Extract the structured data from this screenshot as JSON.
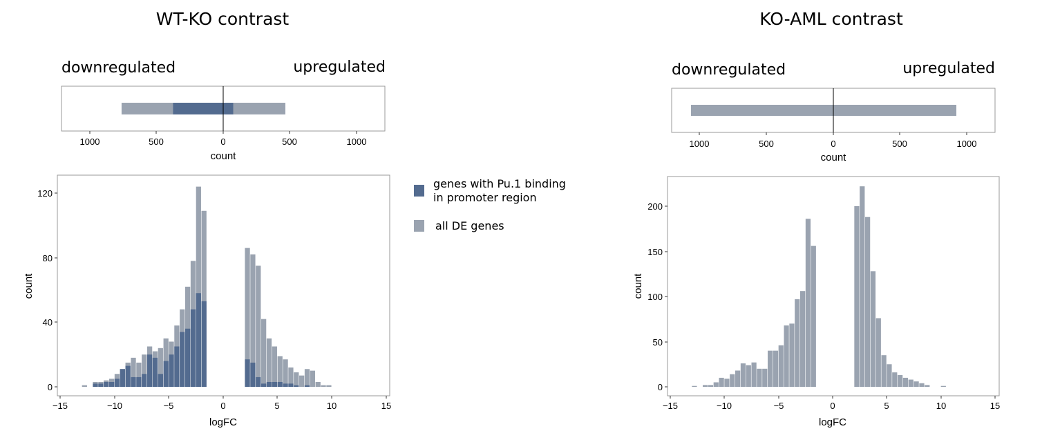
{
  "colors": {
    "all_de": "#9aa3b0",
    "pu1": "#536b8f",
    "frame": "#9a9a9a",
    "axis": "#333333"
  },
  "legend": {
    "items": [
      {
        "label_line1": "genes with Pu.1 binding",
        "label_line2": "in promoter region",
        "color": "#536b8f"
      },
      {
        "label_line1": "all DE genes",
        "label_line2": "",
        "color": "#9aa3b0"
      }
    ]
  },
  "panels": [
    {
      "title": "WT-KO contrast",
      "down_label": "downregulated",
      "up_label": "upregulated",
      "bar_chart": {
        "xlabel": "count",
        "xticks": [
          1000,
          500,
          0,
          500,
          1000
        ],
        "xlim": [
          -1200,
          1200
        ],
        "down_all": 760,
        "up_all": 465,
        "down_pu1": 375,
        "up_pu1": 75
      },
      "histogram": {
        "xlabel": "logFC",
        "ylabel": "count",
        "xlim": [
          -15,
          15
        ],
        "ylim": [
          -4,
          128
        ],
        "xticks": [
          -15,
          -10,
          -5,
          0,
          5,
          10,
          15
        ],
        "yticks": [
          0,
          40,
          80,
          120
        ],
        "xtick_labels": [
          "−15",
          "−10",
          "−5",
          "0",
          "5",
          "10",
          "15"
        ],
        "ytick_labels": [
          "0",
          "40",
          "80",
          "120"
        ]
      }
    },
    {
      "title": "KO-AML contrast",
      "down_label": "downregulated",
      "up_label": "upregulated",
      "bar_chart": {
        "xlabel": "count",
        "xticks": [
          1000,
          500,
          0,
          500,
          1000
        ],
        "xlim": [
          -1200,
          1200
        ],
        "down_all": 1065,
        "up_all": 920,
        "down_pu1": 0,
        "up_pu1": 0
      },
      "histogram": {
        "xlabel": "logFC",
        "ylabel": "count",
        "xlim": [
          -15,
          15
        ],
        "ylim": [
          -8,
          232
        ],
        "xticks": [
          -15,
          -10,
          -5,
          0,
          5,
          10,
          15
        ],
        "yticks": [
          0,
          50,
          100,
          150,
          200
        ],
        "xtick_labels": [
          "−15",
          "−10",
          "−5",
          "0",
          "5",
          "10",
          "15"
        ],
        "ytick_labels": [
          "0",
          "50",
          "100",
          "150",
          "200"
        ]
      }
    }
  ],
  "chart_data": [
    {
      "type": "bar",
      "title": "WT-KO contrast",
      "xlabel": "count",
      "categories": [
        "downregulated",
        "upregulated"
      ],
      "series": [
        {
          "name": "all DE genes",
          "values": [
            760,
            465
          ]
        },
        {
          "name": "genes with Pu.1 binding in promoter region",
          "values": [
            375,
            75
          ]
        }
      ],
      "xlim": [
        -1200,
        1200
      ]
    },
    {
      "type": "bar",
      "title": "WT-KO contrast",
      "xlabel": "logFC",
      "ylabel": "count",
      "bin_width": 0.5,
      "x": [
        -13,
        -12,
        -11.5,
        -11,
        -10.5,
        -10,
        -9.5,
        -9,
        -8.5,
        -8,
        -7.5,
        -7,
        -6.5,
        -6,
        -5.5,
        -5,
        -4.5,
        -4,
        -3.5,
        -3,
        -2.5,
        -2,
        2,
        2.5,
        3,
        3.5,
        4,
        4.5,
        5,
        5.5,
        6,
        6.5,
        7,
        7.5,
        8,
        8.5,
        9,
        9.5
      ],
      "series": [
        {
          "name": "all DE genes",
          "values": [
            1,
            3,
            3,
            4,
            5,
            8,
            11,
            15,
            18,
            15,
            20,
            25,
            22,
            24,
            30,
            28,
            38,
            48,
            62,
            78,
            124,
            109,
            86,
            82,
            75,
            42,
            30,
            25,
            19,
            17,
            12,
            9,
            7,
            11,
            10,
            3,
            1,
            1
          ]
        },
        {
          "name": "genes with Pu.1 binding in promoter region",
          "values": [
            0,
            2,
            2,
            3,
            3,
            5,
            11,
            13,
            6,
            6,
            8,
            20,
            18,
            8,
            16,
            20,
            25,
            34,
            36,
            48,
            58,
            53,
            17,
            15,
            6,
            2,
            3,
            3,
            3,
            2,
            2,
            1,
            0,
            1,
            0,
            0,
            0,
            0
          ]
        }
      ],
      "xlim": [
        -15,
        15
      ],
      "ylim": [
        0,
        128
      ]
    },
    {
      "type": "bar",
      "title": "KO-AML contrast",
      "xlabel": "count",
      "categories": [
        "downregulated",
        "upregulated"
      ],
      "series": [
        {
          "name": "all DE genes",
          "values": [
            1065,
            920
          ]
        }
      ],
      "xlim": [
        -1200,
        1200
      ]
    },
    {
      "type": "bar",
      "title": "KO-AML contrast",
      "xlabel": "logFC",
      "ylabel": "count",
      "bin_width": 0.5,
      "x": [
        -13,
        -12,
        -11.5,
        -11,
        -10.5,
        -10,
        -9.5,
        -9,
        -8.5,
        -8,
        -7.5,
        -7,
        -6.5,
        -6,
        -5.5,
        -5,
        -4.5,
        -4,
        -3.5,
        -3,
        -2.5,
        -2,
        2,
        2.5,
        3,
        3.5,
        4,
        4.5,
        5,
        5.5,
        6,
        6.5,
        7,
        7.5,
        8,
        8.5,
        10
      ],
      "series": [
        {
          "name": "all DE genes",
          "values": [
            1,
            2,
            2,
            5,
            10,
            9,
            14,
            18,
            26,
            24,
            27,
            20,
            20,
            40,
            40,
            46,
            68,
            70,
            97,
            106,
            186,
            156,
            200,
            222,
            188,
            128,
            76,
            35,
            25,
            16,
            13,
            10,
            8,
            6,
            4,
            2,
            1
          ]
        }
      ],
      "xlim": [
        -15,
        15
      ],
      "ylim": [
        0,
        232
      ]
    }
  ]
}
